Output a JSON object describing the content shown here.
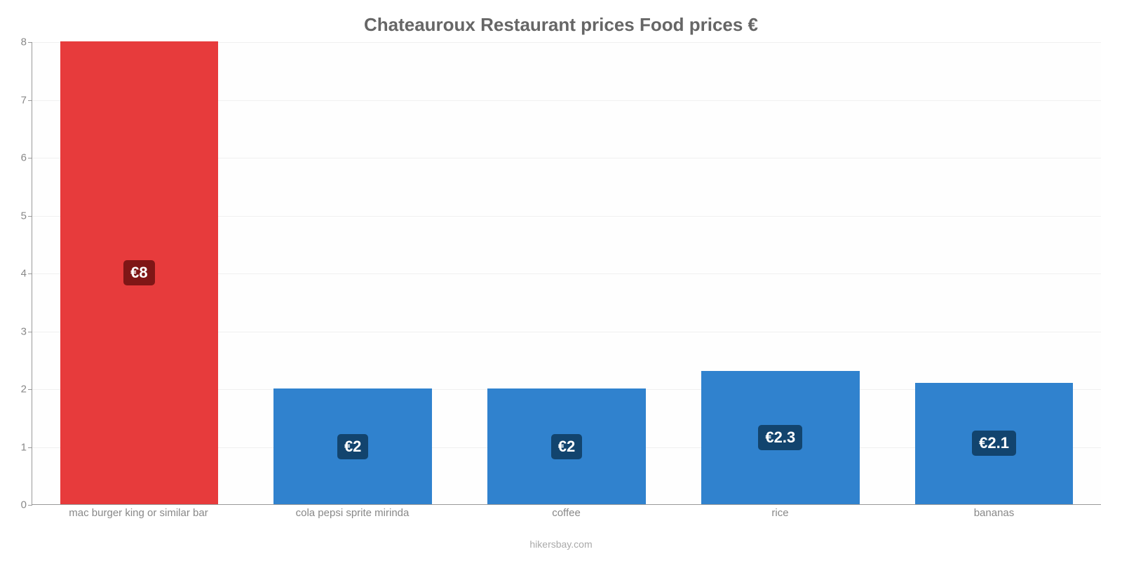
{
  "chart": {
    "type": "bar",
    "title": "Chateauroux Restaurant prices Food prices €",
    "title_color": "#666666",
    "title_fontsize": 26,
    "background_color": "#ffffff",
    "plot_background": "#fefefe",
    "axis_color": "#999999",
    "grid_color": "#f0f0f0",
    "tick_label_color": "#888888",
    "tick_fontsize": 15,
    "ylim": [
      0,
      8
    ],
    "yticks": [
      0,
      1,
      2,
      3,
      4,
      5,
      6,
      7,
      8
    ],
    "bar_width": 0.74,
    "categories": [
      "mac burger king or similar bar",
      "cola pepsi sprite mirinda",
      "coffee",
      "rice",
      "bananas"
    ],
    "values": [
      8,
      2,
      2,
      2.3,
      2.1
    ],
    "value_labels": [
      "€8",
      "€2",
      "€2",
      "€2.3",
      "€2.1"
    ],
    "bar_colors": [
      "#e73b3c",
      "#3082ce",
      "#3082ce",
      "#3082ce",
      "#3082ce"
    ],
    "label_bg_colors": [
      "#7f1616",
      "#12446e",
      "#12446e",
      "#12446e",
      "#12446e"
    ],
    "label_text_color": "#ffffff",
    "label_fontsize": 22,
    "attribution": "hikersbay.com",
    "attribution_color": "#aaaaaa"
  }
}
